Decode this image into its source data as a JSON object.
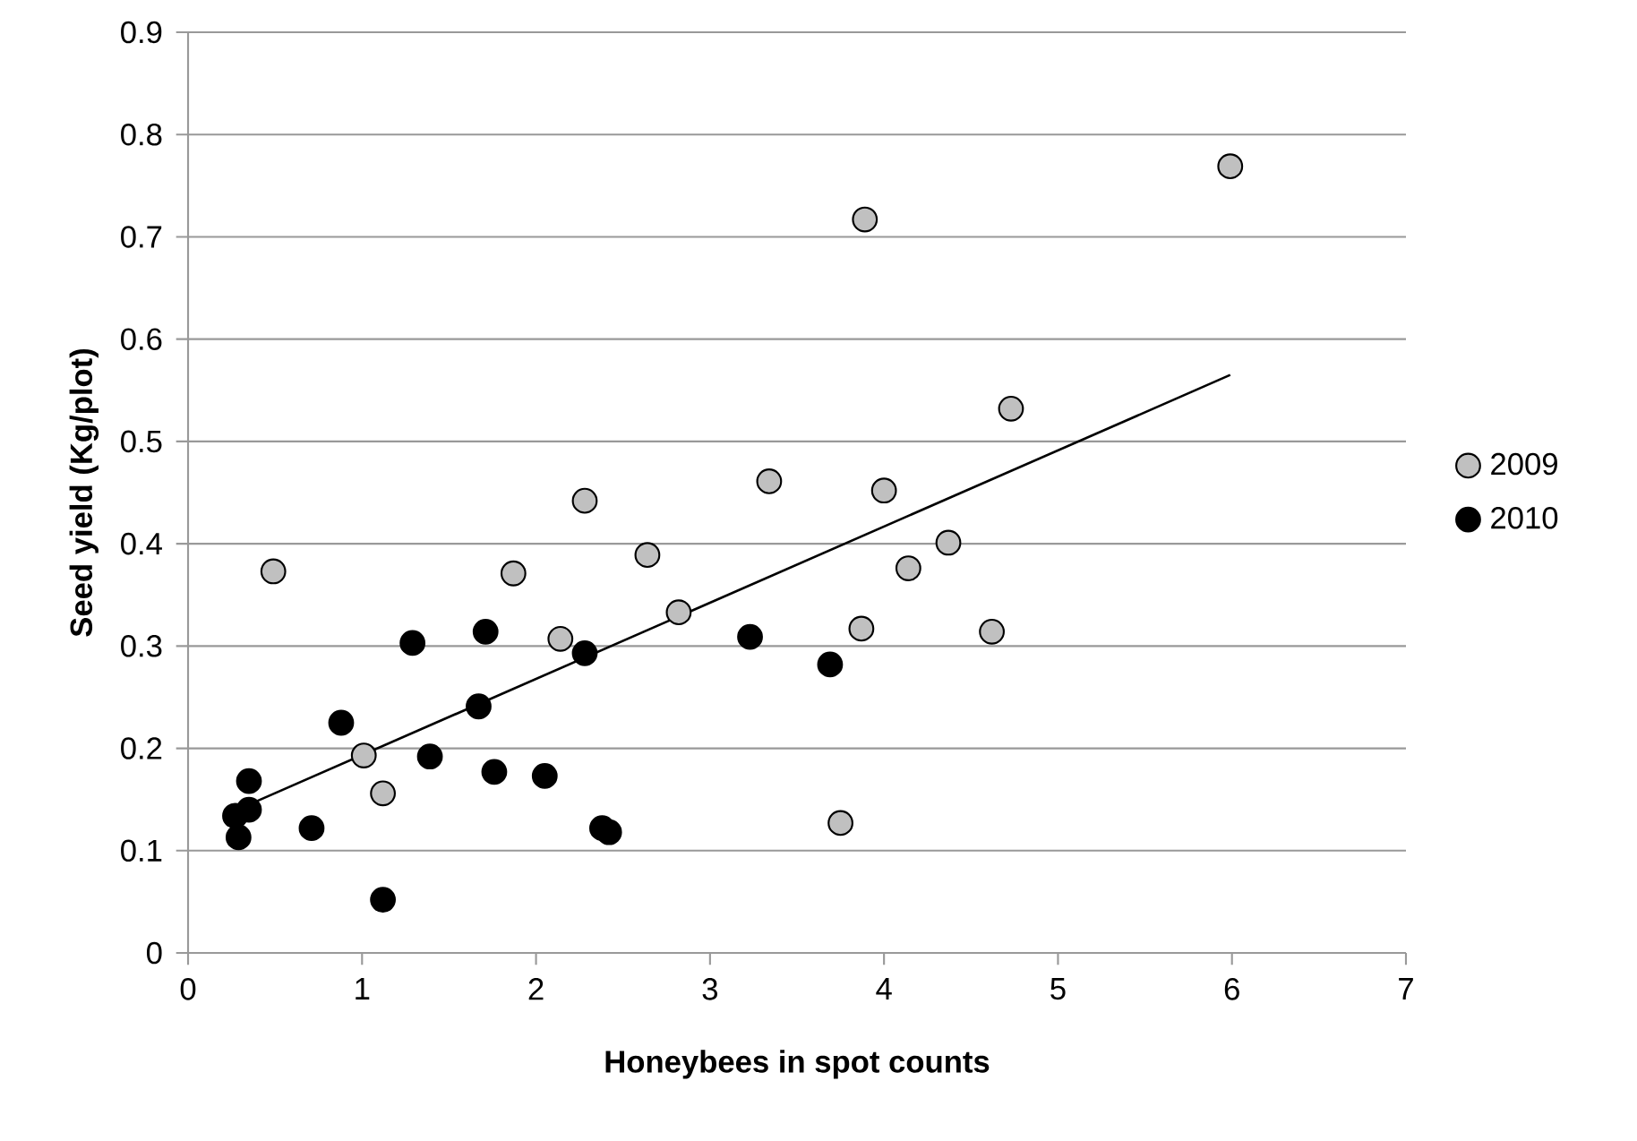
{
  "chart_data": {
    "type": "scatter",
    "xlabel": "Honeybees in spot counts",
    "ylabel": "Seed yield (Kg/plot)",
    "xlim": [
      0,
      7
    ],
    "ylim": [
      0,
      0.9
    ],
    "xticks": [
      0,
      1,
      2,
      3,
      4,
      5,
      6,
      7
    ],
    "yticks": [
      0,
      0.1,
      0.2,
      0.3,
      0.4,
      0.5,
      0.6,
      0.7,
      0.8,
      0.9
    ],
    "grid": "y",
    "legend": "right",
    "marker": "circle",
    "series": [
      {
        "name": "2009",
        "color": "#c0c0c0",
        "x": [
          0.49,
          1.01,
          1.12,
          1.87,
          2.14,
          2.28,
          2.64,
          2.82,
          3.34,
          3.75,
          3.87,
          3.89,
          4.0,
          4.14,
          4.37,
          4.62,
          4.73,
          5.99
        ],
        "values": [
          0.373,
          0.193,
          0.156,
          0.371,
          0.307,
          0.442,
          0.389,
          0.333,
          0.461,
          0.127,
          0.317,
          0.717,
          0.452,
          0.376,
          0.401,
          0.314,
          0.532,
          0.769
        ]
      },
      {
        "name": "2010",
        "color": "#000000",
        "x": [
          0.27,
          0.29,
          0.35,
          0.35,
          0.71,
          0.88,
          1.12,
          1.29,
          1.39,
          1.67,
          1.71,
          1.76,
          2.05,
          2.28,
          2.38,
          2.42,
          3.23,
          3.69
        ],
        "values": [
          0.134,
          0.113,
          0.14,
          0.168,
          0.122,
          0.225,
          0.052,
          0.303,
          0.192,
          0.241,
          0.314,
          0.177,
          0.173,
          0.293,
          0.122,
          0.118,
          0.309,
          0.282
        ]
      },
      {
        "type": "line",
        "marker": "none",
        "color": "#000000",
        "x": [
          0.35,
          5.99
        ],
        "values": [
          0.145,
          0.565
        ]
      }
    ]
  }
}
